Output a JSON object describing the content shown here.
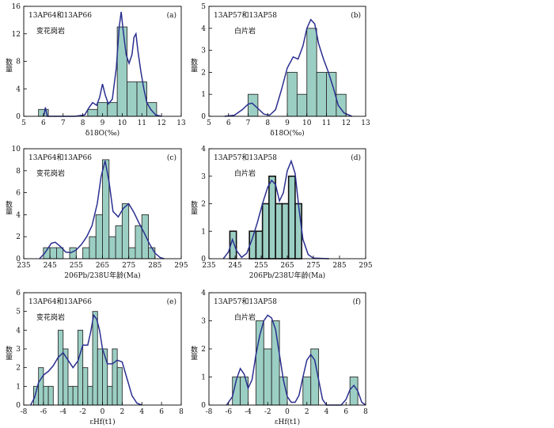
{
  "y_label": "数量",
  "chart_data": [
    {
      "id": "a",
      "type": "bar",
      "panel_label": "(a)",
      "sample": "13AP64和13AP66",
      "rock": "变花岗岩",
      "xlabel": "δ18O(‰)",
      "xlim": [
        5,
        13
      ],
      "ylim": [
        0,
        16
      ],
      "xticks": [
        "5",
        "6",
        "7",
        "8",
        "9",
        "10",
        "11",
        "12",
        "13"
      ],
      "yticks": [
        "0",
        "4",
        "8",
        "12",
        "16"
      ],
      "bin_width": 0.5,
      "dark_edges": false,
      "bins": [
        {
          "x": 6,
          "value": 1
        },
        {
          "x": 8.5,
          "value": 1
        },
        {
          "x": 9,
          "value": 2
        },
        {
          "x": 9.5,
          "value": 2
        },
        {
          "x": 10,
          "value": 13
        },
        {
          "x": 10.5,
          "value": 5
        },
        {
          "x": 11,
          "value": 5
        },
        {
          "x": 11.5,
          "value": 2
        }
      ],
      "density": [
        [
          6,
          0
        ],
        [
          6.05,
          0.5
        ],
        [
          6.1,
          1.3
        ],
        [
          6.15,
          0.6
        ],
        [
          6.2,
          0
        ],
        [
          7.6,
          0
        ],
        [
          8.1,
          0.2
        ],
        [
          8.3,
          1.2
        ],
        [
          8.5,
          2
        ],
        [
          8.7,
          1.6
        ],
        [
          8.85,
          2.7
        ],
        [
          9,
          4.7
        ],
        [
          9.15,
          3
        ],
        [
          9.3,
          1.8
        ],
        [
          9.5,
          2.5
        ],
        [
          9.7,
          7
        ],
        [
          9.85,
          13
        ],
        [
          9.95,
          15.2
        ],
        [
          10.05,
          12.5
        ],
        [
          10.2,
          9
        ],
        [
          10.35,
          7.7
        ],
        [
          10.5,
          9
        ],
        [
          10.6,
          11.5
        ],
        [
          10.7,
          12
        ],
        [
          10.8,
          9.5
        ],
        [
          10.95,
          6.5
        ],
        [
          11.1,
          4
        ],
        [
          11.25,
          2
        ],
        [
          11.45,
          1
        ],
        [
          11.7,
          0.2
        ],
        [
          12,
          0
        ]
      ]
    },
    {
      "id": "b",
      "type": "bar",
      "panel_label": "(b)",
      "sample": "13AP57和13AP58",
      "rock": "白片岩",
      "xlabel": "δ18O(‰)",
      "xlim": [
        5,
        13
      ],
      "ylim": [
        0,
        5
      ],
      "xticks": [
        "5",
        "6",
        "7",
        "8",
        "9",
        "10",
        "11",
        "12",
        "13"
      ],
      "yticks": [
        "0",
        "1",
        "2",
        "3",
        "4",
        "5"
      ],
      "bin_width": 0.5,
      "dark_edges": false,
      "bins": [
        {
          "x": 7.25,
          "value": 1
        },
        {
          "x": 9.25,
          "value": 2
        },
        {
          "x": 9.75,
          "value": 1
        },
        {
          "x": 10.25,
          "value": 4
        },
        {
          "x": 10.75,
          "value": 2
        },
        {
          "x": 11.25,
          "value": 2
        },
        {
          "x": 11.75,
          "value": 1
        }
      ],
      "density": [
        [
          5.8,
          0
        ],
        [
          6.3,
          0.05
        ],
        [
          6.7,
          0.3
        ],
        [
          7,
          0.55
        ],
        [
          7.2,
          0.6
        ],
        [
          7.45,
          0.4
        ],
        [
          7.8,
          0.1
        ],
        [
          8.1,
          0.05
        ],
        [
          8.4,
          0.3
        ],
        [
          8.7,
          1.2
        ],
        [
          9,
          2.2
        ],
        [
          9.3,
          2.7
        ],
        [
          9.55,
          2.6
        ],
        [
          9.8,
          3.2
        ],
        [
          10,
          4
        ],
        [
          10.2,
          4.4
        ],
        [
          10.4,
          4.2
        ],
        [
          10.6,
          3.3
        ],
        [
          10.85,
          2.6
        ],
        [
          11.1,
          2
        ],
        [
          11.35,
          1.3
        ],
        [
          11.6,
          0.5
        ],
        [
          11.9,
          0.15
        ],
        [
          12.3,
          0
        ]
      ]
    },
    {
      "id": "c",
      "type": "bar",
      "panel_label": "(c)",
      "sample": "13AP64和13AP66",
      "rock": "变花岗岩",
      "xlabel": "206Pb/238U年龄(Ma)",
      "xlim": [
        235,
        295
      ],
      "ylim": [
        0,
        10
      ],
      "xticks": [
        "235",
        "245",
        "255",
        "265",
        "275",
        "285",
        "295"
      ],
      "yticks": [
        "0",
        "2",
        "4",
        "6",
        "8",
        "10"
      ],
      "bin_width": 2.5,
      "dark_edges": false,
      "bins": [
        {
          "x": 243.75,
          "value": 1
        },
        {
          "x": 246.25,
          "value": 1
        },
        {
          "x": 248.75,
          "value": 1
        },
        {
          "x": 253.75,
          "value": 1
        },
        {
          "x": 258.75,
          "value": 1
        },
        {
          "x": 261.25,
          "value": 2
        },
        {
          "x": 263.75,
          "value": 4
        },
        {
          "x": 266.25,
          "value": 9
        },
        {
          "x": 268.75,
          "value": 2
        },
        {
          "x": 271.25,
          "value": 3
        },
        {
          "x": 273.75,
          "value": 5
        },
        {
          "x": 276.25,
          "value": 1
        },
        {
          "x": 278.75,
          "value": 3
        },
        {
          "x": 281.25,
          "value": 4
        },
        {
          "x": 283.75,
          "value": 1
        }
      ],
      "density": [
        [
          241,
          0
        ],
        [
          243,
          0.5
        ],
        [
          245.5,
          1.4
        ],
        [
          247,
          1.5
        ],
        [
          249,
          1.1
        ],
        [
          251,
          0.6
        ],
        [
          253,
          0.55
        ],
        [
          255,
          0.8
        ],
        [
          257,
          1.3
        ],
        [
          259,
          2
        ],
        [
          261,
          3
        ],
        [
          263,
          5
        ],
        [
          264.5,
          7.5
        ],
        [
          266,
          8.9
        ],
        [
          267.5,
          7
        ],
        [
          269,
          4.3
        ],
        [
          271,
          3.8
        ],
        [
          273,
          4.6
        ],
        [
          275,
          5
        ],
        [
          277,
          4.2
        ],
        [
          279,
          3.2
        ],
        [
          281,
          2.3
        ],
        [
          283,
          1.3
        ],
        [
          285,
          0.5
        ],
        [
          287,
          0.1
        ],
        [
          288.5,
          0
        ]
      ]
    },
    {
      "id": "d",
      "type": "bar",
      "panel_label": "(d)",
      "sample": "13AP57和13AP58",
      "rock": "白片岩",
      "xlabel": "206Pb/238U年龄(Ma)",
      "xlim": [
        235,
        295
      ],
      "ylim": [
        0,
        4
      ],
      "xticks": [
        "235",
        "245",
        "255",
        "265",
        "275",
        "285",
        "295"
      ],
      "yticks": [
        "0",
        "1",
        "2",
        "3",
        "4"
      ],
      "bin_width": 2.5,
      "dark_edges": true,
      "bins": [
        {
          "x": 244.25,
          "value": 1
        },
        {
          "x": 251.75,
          "value": 1
        },
        {
          "x": 254.25,
          "value": 1
        },
        {
          "x": 256.75,
          "value": 2
        },
        {
          "x": 259.25,
          "value": 3
        },
        {
          "x": 261.75,
          "value": 2
        },
        {
          "x": 264.25,
          "value": 2
        },
        {
          "x": 266.75,
          "value": 3
        },
        {
          "x": 269.25,
          "value": 2
        }
      ],
      "density": [
        [
          240.5,
          0
        ],
        [
          242.5,
          0.25
        ],
        [
          244,
          0.7
        ],
        [
          245.5,
          0.3
        ],
        [
          247.5,
          0.05
        ],
        [
          249.5,
          0.2
        ],
        [
          251.5,
          0.7
        ],
        [
          253.5,
          1.3
        ],
        [
          255.5,
          2
        ],
        [
          257.5,
          2.6
        ],
        [
          259,
          2.85
        ],
        [
          260.5,
          2.7
        ],
        [
          262,
          2.1
        ],
        [
          263.5,
          2.4
        ],
        [
          265,
          3.2
        ],
        [
          266.5,
          3.55
        ],
        [
          268,
          3.1
        ],
        [
          269.5,
          1.8
        ],
        [
          271,
          0.7
        ],
        [
          273,
          0.15
        ],
        [
          275,
          0.02
        ],
        [
          281,
          0
        ]
      ]
    },
    {
      "id": "e",
      "type": "bar",
      "panel_label": "(e)",
      "sample": "13AP64和13AP66",
      "rock": "变花岗岩",
      "xlabel": "εHf(t1)",
      "xlim": [
        -8,
        8
      ],
      "ylim": [
        0,
        6
      ],
      "xticks": [
        "-8",
        "-6",
        "-4",
        "-2",
        "0",
        "2",
        "4",
        "6",
        "8"
      ],
      "yticks": [
        "0",
        "1",
        "2",
        "3",
        "4",
        "5",
        "6"
      ],
      "bin_width": 0.5,
      "dark_edges": false,
      "bins": [
        {
          "x": -6.75,
          "value": 1
        },
        {
          "x": -6.25,
          "value": 2
        },
        {
          "x": -5.75,
          "value": 1
        },
        {
          "x": -5.25,
          "value": 1
        },
        {
          "x": -4.25,
          "value": 4
        },
        {
          "x": -3.75,
          "value": 3
        },
        {
          "x": -3.25,
          "value": 1
        },
        {
          "x": -2.75,
          "value": 1
        },
        {
          "x": -2.25,
          "value": 4
        },
        {
          "x": -1.75,
          "value": 2
        },
        {
          "x": -1.25,
          "value": 1
        },
        {
          "x": -0.75,
          "value": 5
        },
        {
          "x": -0.25,
          "value": 3
        },
        {
          "x": 0.25,
          "value": 3
        },
        {
          "x": 0.75,
          "value": 1
        },
        {
          "x": 1.25,
          "value": 3
        },
        {
          "x": 1.75,
          "value": 2
        }
      ],
      "density": [
        [
          -7.3,
          0
        ],
        [
          -6.9,
          0.4
        ],
        [
          -6.5,
          1.2
        ],
        [
          -6,
          1.6
        ],
        [
          -5.5,
          1.8
        ],
        [
          -5,
          2.1
        ],
        [
          -4.5,
          2.55
        ],
        [
          -4,
          2.8
        ],
        [
          -3.5,
          2.4
        ],
        [
          -3,
          2
        ],
        [
          -2.5,
          2.35
        ],
        [
          -2,
          3.2
        ],
        [
          -1.5,
          3.2
        ],
        [
          -1.2,
          3.9
        ],
        [
          -0.9,
          4.8
        ],
        [
          -0.6,
          4.6
        ],
        [
          -0.3,
          4
        ],
        [
          0,
          3
        ],
        [
          0.5,
          2.2
        ],
        [
          1,
          2.2
        ],
        [
          1.5,
          2.4
        ],
        [
          2,
          2.3
        ],
        [
          2.5,
          1.4
        ],
        [
          3,
          0.5
        ],
        [
          3.5,
          0.1
        ],
        [
          4,
          0
        ]
      ]
    },
    {
      "id": "f",
      "type": "bar",
      "panel_label": "(f)",
      "sample": "13AP57和13AP58",
      "rock": "白片岩",
      "xlabel": "εHf(t1)",
      "xlim": [
        -8,
        8
      ],
      "ylim": [
        0,
        4
      ],
      "xticks": [
        "-8",
        "-6",
        "-4",
        "-2",
        "0",
        "2",
        "4",
        "6",
        "8"
      ],
      "yticks": [
        "0",
        "1",
        "2",
        "3",
        "4"
      ],
      "bin_width": 0.8,
      "dark_edges": false,
      "bins": [
        {
          "x": -5.2,
          "value": 1
        },
        {
          "x": -4.4,
          "value": 1
        },
        {
          "x": -2.8,
          "value": 3
        },
        {
          "x": -2,
          "value": 2
        },
        {
          "x": -1.2,
          "value": 3
        },
        {
          "x": -0.4,
          "value": 1
        },
        {
          "x": 2,
          "value": 1
        },
        {
          "x": 2.8,
          "value": 2
        },
        {
          "x": 6.8,
          "value": 1
        }
      ],
      "density": [
        [
          -6.2,
          0
        ],
        [
          -5.6,
          0.3
        ],
        [
          -5.2,
          0.9
        ],
        [
          -4.8,
          1.3
        ],
        [
          -4.4,
          1.1
        ],
        [
          -4,
          0.6
        ],
        [
          -3.6,
          0.9
        ],
        [
          -3.2,
          1.8
        ],
        [
          -2.8,
          2.5
        ],
        [
          -2.4,
          3
        ],
        [
          -2,
          3.2
        ],
        [
          -1.6,
          3.1
        ],
        [
          -1.2,
          2.7
        ],
        [
          -0.8,
          1.8
        ],
        [
          -0.4,
          0.9
        ],
        [
          0,
          0.3
        ],
        [
          0.4,
          0.1
        ],
        [
          0.8,
          0.1
        ],
        [
          1.2,
          0.35
        ],
        [
          1.6,
          1
        ],
        [
          2,
          1.6
        ],
        [
          2.4,
          1.8
        ],
        [
          2.8,
          1.6
        ],
        [
          3.2,
          0.9
        ],
        [
          3.6,
          0.2
        ],
        [
          4,
          0
        ],
        [
          5.5,
          0
        ],
        [
          6,
          0.2
        ],
        [
          6.4,
          0.55
        ],
        [
          6.8,
          0.7
        ],
        [
          7.2,
          0.5
        ],
        [
          7.6,
          0.1
        ],
        [
          8,
          0
        ]
      ]
    }
  ]
}
